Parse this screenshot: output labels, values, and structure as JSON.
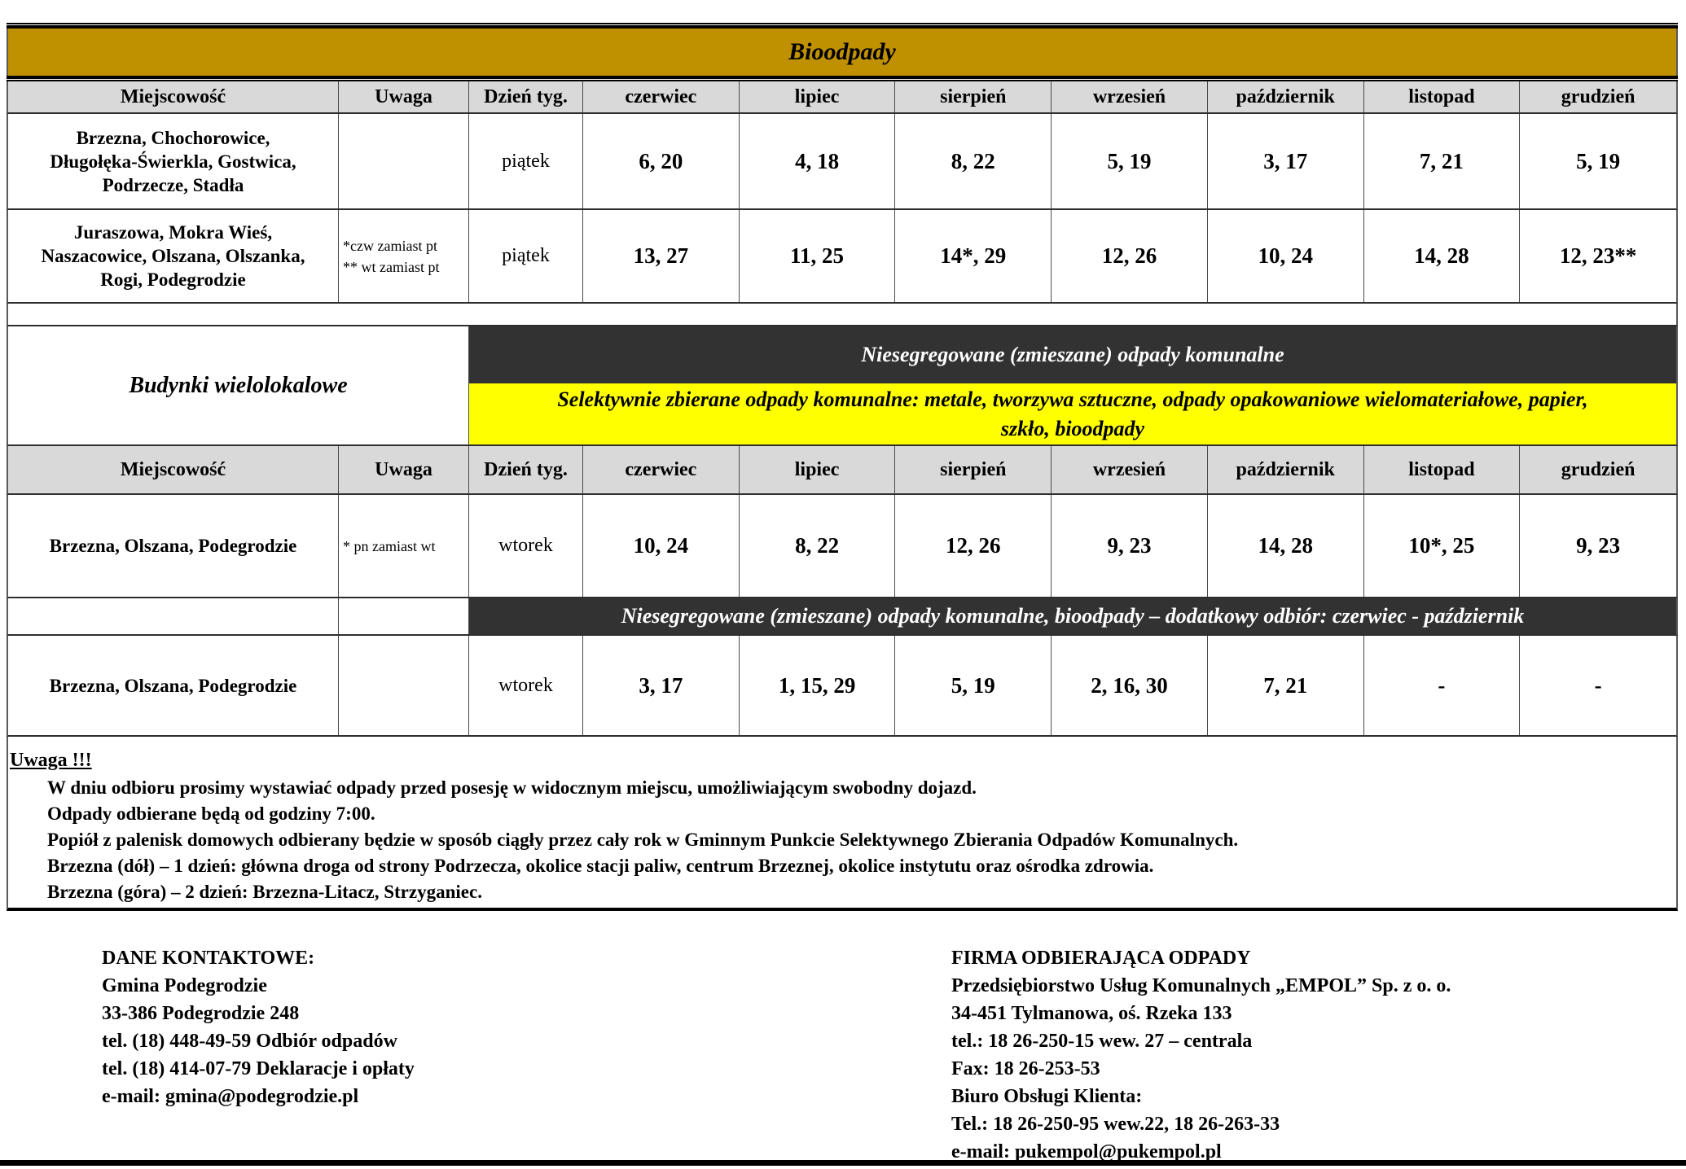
{
  "colors": {
    "gold": "#BF9000",
    "dark_banner": "#323232",
    "yellow_banner": "#FFFF00",
    "header_gray": "#D9D9D9"
  },
  "table_bio": {
    "title": "Bioodpady",
    "columns": [
      "Miejscowość",
      "Uwaga",
      "Dzień tyg.",
      "czerwiec",
      "lipiec",
      "sierpień",
      "wrzesień",
      "październik",
      "listopad",
      "grudzień"
    ],
    "rows": [
      {
        "miejscowosc": "Brzezna, Chochorowice,\nDługołęka-Świerkla, Gostwica,\nPodrzecze, Stadła",
        "uwaga": "",
        "dzien": "piątek",
        "values": [
          "6, 20",
          "4, 18",
          "8, 22",
          "5, 19",
          "3, 17",
          "7, 21",
          "5, 19"
        ]
      },
      {
        "miejscowosc": "Juraszowa, Mokra Wieś,\nNaszacowice, Olszana, Olszanka,\nRogi, Podegrodzie",
        "uwaga": "*czw zamiast pt\n** wt zamiast pt",
        "dzien": "piątek",
        "values": [
          "13, 27",
          "11, 25",
          "14*, 29",
          "12, 26",
          "10, 24",
          "14, 28",
          "12, 23**"
        ]
      }
    ]
  },
  "table_multi": {
    "section_label": "Budynki wielolokalowe",
    "banner_mixed": "Niesegregowane (zmieszane) odpady komunalne",
    "banner_selective": "Selektywnie zbierane odpady komunalne: metale, tworzywa sztuczne, odpady opakowaniowe wielomateriałowe, papier,\nszkło, bioodpady",
    "columns": [
      "Miejscowość",
      "Uwaga",
      "Dzień tyg.",
      "czerwiec",
      "lipiec",
      "sierpień",
      "wrzesień",
      "październik",
      "listopad",
      "grudzień"
    ],
    "row_main": {
      "miejscowosc": "Brzezna, Olszana, Podegrodzie",
      "uwaga": "* pn zamiast wt",
      "dzien": "wtorek",
      "values": [
        "10, 24",
        "8, 22",
        "12, 26",
        "9, 23",
        "14, 28",
        "10*, 25",
        "9, 23"
      ]
    },
    "banner_additional": "Niesegregowane (zmieszane) odpady komunalne, bioodpady – dodatkowy odbiór: czerwiec - październik",
    "row_additional": {
      "miejscowosc": "Brzezna, Olszana, Podegrodzie",
      "uwaga": "",
      "dzien": "wtorek",
      "values": [
        "3, 17",
        "1, 15, 29",
        "5, 19",
        "2, 16, 30",
        "7, 21",
        "-",
        "-"
      ]
    }
  },
  "notes": {
    "title": "Uwaga !!!",
    "lines": [
      "W dniu odbioru prosimy wystawiać odpady przed posesję w widocznym miejscu, umożliwiającym swobodny dojazd.",
      "Odpady odbierane będą od godziny 7:00.",
      "Popiół z palenisk domowych odbierany będzie w sposób ciągły przez cały rok w Gminnym Punkcie Selektywnego Zbierania Odpadów Komunalnych.",
      "Brzezna (dół) – 1 dzień: główna droga od strony Podrzecza, okolice stacji paliw, centrum Brzeznej, okolice instytutu oraz ośrodka zdrowia.",
      "Brzezna (góra) – 2 dzień: Brzezna-Litacz, Strzyganiec."
    ]
  },
  "contacts": {
    "left": {
      "title": "DANE KONTAKTOWE:",
      "lines": [
        "Gmina Podegrodzie",
        "33-386 Podegrodzie 248",
        "tel. (18) 448-49-59 Odbiór odpadów",
        "tel. (18) 414-07-79 Deklaracje i opłaty",
        "e-mail: gmina@podegrodzie.pl"
      ]
    },
    "right": {
      "title": "FIRMA ODBIERAJĄCA ODPADY",
      "lines": [
        "Przedsiębiorstwo Usług Komunalnych „EMPOL” Sp. z o. o.",
        "34-451 Tylmanowa, oś. Rzeka 133",
        "tel.: 18 26-250-15 wew. 27 – centrala",
        "Fax: 18 26-253-53",
        "Biuro Obsługi Klienta:",
        "Tel.: 18 26-250-95 wew.22, 18 26-263-33",
        "e-mail: pukempol@pukempol.pl"
      ]
    }
  }
}
